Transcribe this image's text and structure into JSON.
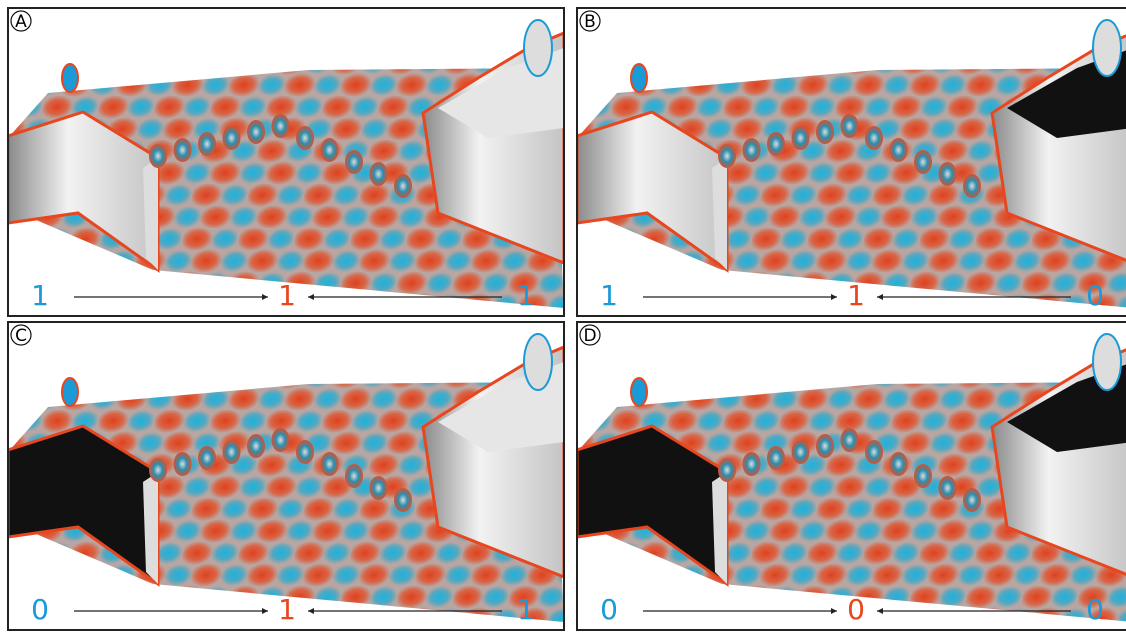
{
  "panels": [
    {
      "label": "A",
      "left": "1",
      "output": "1",
      "right": "1"
    },
    {
      "label": "B",
      "left": "1",
      "output": "1",
      "right": "0"
    },
    {
      "label": "C",
      "left": "0",
      "output": "1",
      "right": "1"
    },
    {
      "label": "D",
      "left": "0",
      "output": "0",
      "right": "0"
    }
  ]
}
